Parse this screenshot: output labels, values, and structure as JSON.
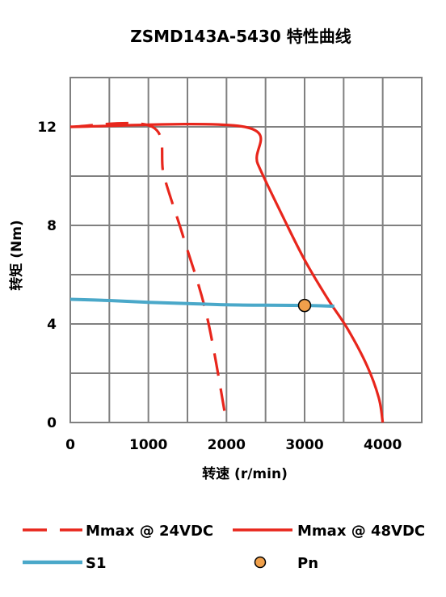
{
  "chart_data": {
    "type": "line",
    "title": "ZSMD143A-5430 特性曲线",
    "xlabel": "转速 (r/min)",
    "ylabel": "转矩 (Nm)",
    "xlim": [
      0,
      4500
    ],
    "ylim": [
      0,
      14
    ],
    "x_ticks": [
      0,
      1000,
      2000,
      3000,
      4000
    ],
    "x_tick_labels": [
      "0",
      "1000",
      "2000",
      "3000",
      "4000"
    ],
    "y_ticks": [
      0,
      4,
      8,
      12
    ],
    "y_tick_labels": [
      "0",
      "4",
      "8",
      "12"
    ],
    "x_grid_step": 500,
    "y_grid_step": 2,
    "grid": true,
    "legend_position": "bottom",
    "series": [
      {
        "name": "Mmax @ 24VDC",
        "style": "dashed",
        "color": "#e8261c",
        "points": [
          [
            0,
            12
          ],
          [
            1050,
            12
          ],
          [
            1200,
            10
          ],
          [
            1450,
            7.5
          ],
          [
            1750,
            4.3
          ],
          [
            2000,
            0
          ]
        ]
      },
      {
        "name": "Mmax @ 48VDC",
        "style": "solid",
        "color": "#e8261c",
        "points": [
          [
            0,
            12
          ],
          [
            2230,
            12
          ],
          [
            2400,
            10.5
          ],
          [
            2700,
            8.5
          ],
          [
            3000,
            6.6
          ],
          [
            3300,
            5.0
          ],
          [
            3550,
            3.8
          ],
          [
            3800,
            2.3
          ],
          [
            3950,
            1.0
          ],
          [
            4000,
            0
          ]
        ]
      },
      {
        "name": "S1",
        "style": "solid",
        "color": "#4aa8c9",
        "points": [
          [
            0,
            5.0
          ],
          [
            500,
            4.95
          ],
          [
            1000,
            4.88
          ],
          [
            1500,
            4.83
          ],
          [
            2000,
            4.78
          ],
          [
            2500,
            4.76
          ],
          [
            3000,
            4.75
          ],
          [
            3380,
            4.72
          ]
        ]
      }
    ],
    "markers": [
      {
        "name": "Pn",
        "x": 3000,
        "y": 4.75,
        "color": "#f0a04b"
      }
    ]
  }
}
